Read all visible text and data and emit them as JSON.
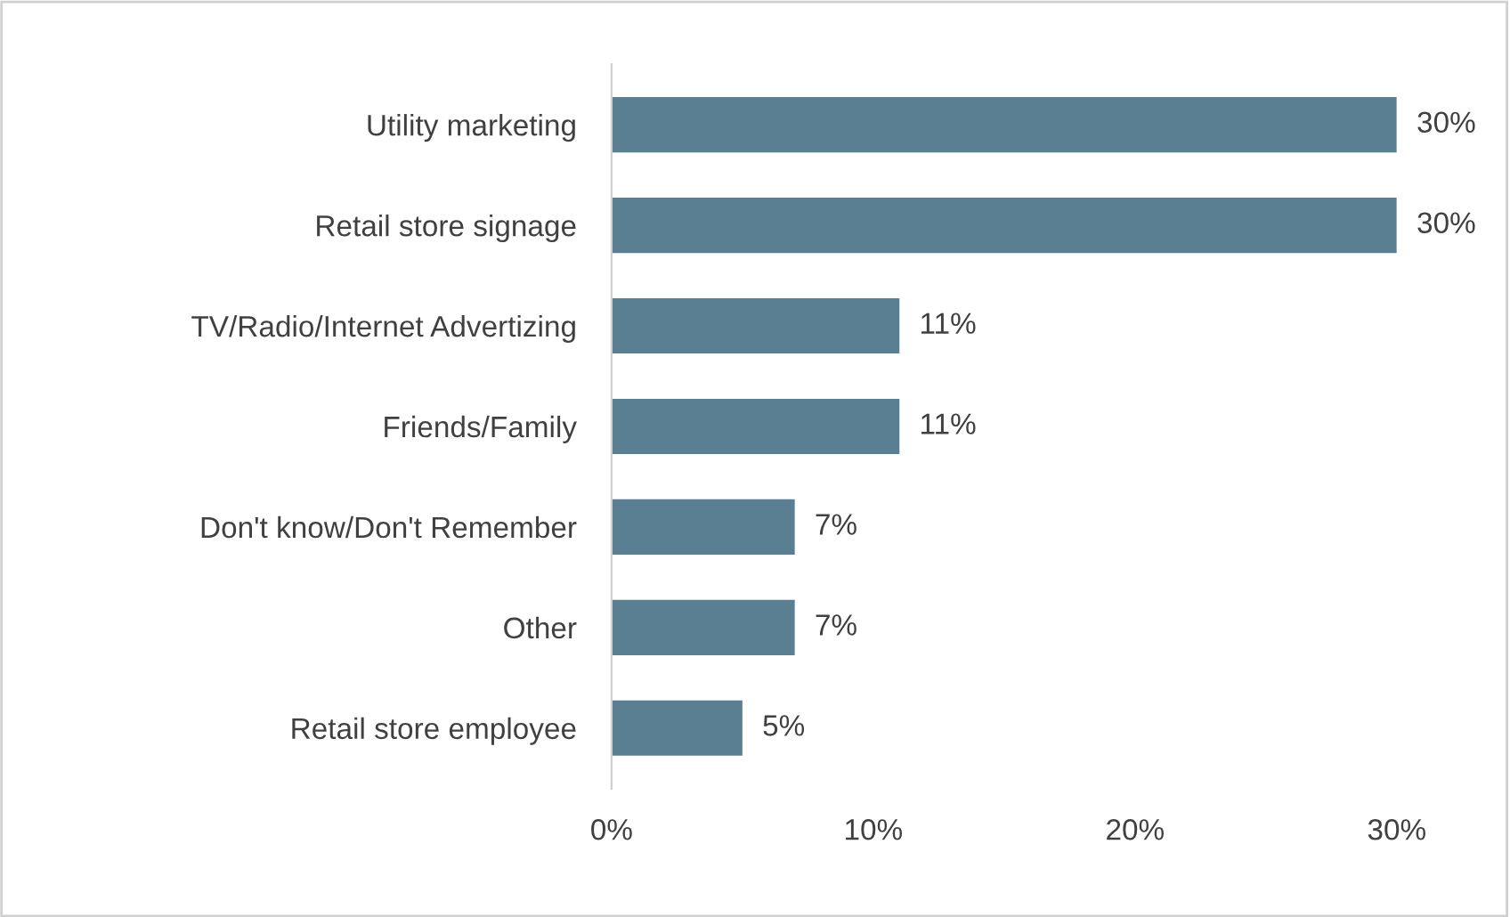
{
  "chart_data": {
    "type": "bar",
    "orientation": "horizontal",
    "categories": [
      "Utility marketing",
      "Retail store signage",
      "TV/Radio/Internet Advertizing",
      "Friends/Family",
      "Don't know/Don't Remember",
      "Other",
      "Retail store employee"
    ],
    "values": [
      30,
      30,
      11,
      11,
      7,
      7,
      5
    ],
    "value_labels": [
      "30%",
      "30%",
      "11%",
      "11%",
      "7%",
      "7%",
      "5%"
    ],
    "color": "#5b7f92",
    "xlim": [
      0,
      30
    ],
    "xticks": [
      {
        "value": 0,
        "label": "0%"
      },
      {
        "value": 10,
        "label": "10%"
      },
      {
        "value": 20,
        "label": "20%"
      },
      {
        "value": 30,
        "label": "30%"
      }
    ],
    "grid": false,
    "legend": false
  }
}
